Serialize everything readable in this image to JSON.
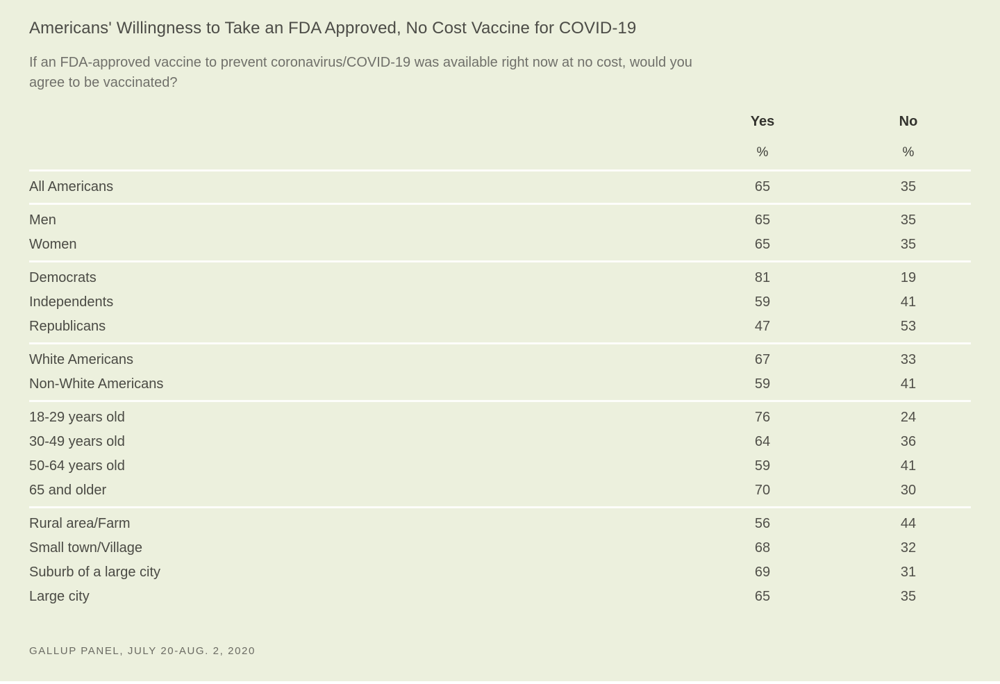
{
  "page": {
    "title": "Americans' Willingness to Take an FDA Approved, No Cost Vaccine for COVID-19",
    "subtitle": "If an FDA-approved vaccine to prevent coronavirus/COVID-19 was available right now at no cost, would you agree to be vaccinated?",
    "footer": "GALLUP PANEL, JULY 20-AUG. 2, 2020"
  },
  "colors": {
    "background": "#ecf0dd",
    "separator": "#fdfdfa",
    "title_text": "#4c4c47",
    "muted_text": "#70706a",
    "dark_text": "#33332e"
  },
  "chart_data": {
    "type": "table",
    "title": "Americans' Willingness to Take an FDA Approved, No Cost Vaccine for COVID-19",
    "subtitle": "If an FDA-approved vaccine to prevent coronavirus/COVID-19 was available right now at no cost, would you agree to be vaccinated?",
    "source": "GALLUP PANEL, JULY 20-AUG. 2, 2020",
    "columns": [
      {
        "label": "Yes",
        "unit": "%"
      },
      {
        "label": "No",
        "unit": "%"
      }
    ],
    "groups": [
      {
        "rows": [
          {
            "label": "All Americans",
            "yes": 65,
            "no": 35
          }
        ]
      },
      {
        "rows": [
          {
            "label": "Men",
            "yes": 65,
            "no": 35
          },
          {
            "label": "Women",
            "yes": 65,
            "no": 35
          }
        ]
      },
      {
        "rows": [
          {
            "label": "Democrats",
            "yes": 81,
            "no": 19
          },
          {
            "label": "Independents",
            "yes": 59,
            "no": 41
          },
          {
            "label": "Republicans",
            "yes": 47,
            "no": 53
          }
        ]
      },
      {
        "rows": [
          {
            "label": "White Americans",
            "yes": 67,
            "no": 33
          },
          {
            "label": "Non-White Americans",
            "yes": 59,
            "no": 41
          }
        ]
      },
      {
        "rows": [
          {
            "label": "18-29 years old",
            "yes": 76,
            "no": 24
          },
          {
            "label": "30-49 years old",
            "yes": 64,
            "no": 36
          },
          {
            "label": "50-64 years old",
            "yes": 59,
            "no": 41
          },
          {
            "label": "65 and older",
            "yes": 70,
            "no": 30
          }
        ]
      },
      {
        "rows": [
          {
            "label": "Rural area/Farm",
            "yes": 56,
            "no": 44
          },
          {
            "label": "Small town/Village",
            "yes": 68,
            "no": 32
          },
          {
            "label": "Suburb of a large city",
            "yes": 69,
            "no": 31
          },
          {
            "label": "Large city",
            "yes": 65,
            "no": 35
          }
        ]
      }
    ]
  }
}
